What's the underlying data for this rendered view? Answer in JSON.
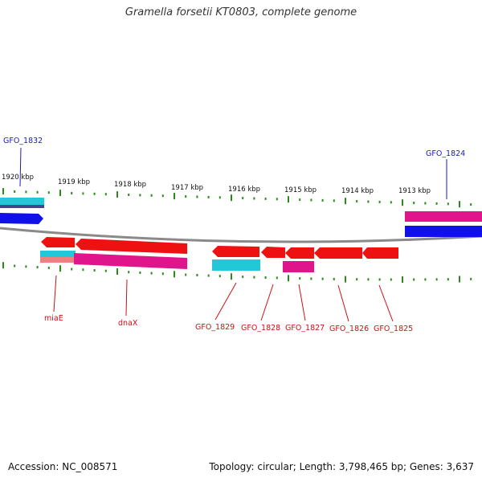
{
  "title": "Gramella forsetii KT0803, complete genome",
  "footer": {
    "accession": "Accession: NC_008571",
    "topology": "Topology: circular; Length: 3,798,465 bp; Genes: 3,637"
  },
  "scale": {
    "kbp_labels": [
      "1920 kbp",
      "1919 kbp",
      "1918 kbp",
      "1917 kbp",
      "1916 kbp",
      "1915 kbp",
      "1914 kbp",
      "1913 kbp"
    ]
  },
  "gene_labels": {
    "top": [
      "GFO_1832",
      "GFO_1824"
    ],
    "bottom": [
      "miaE",
      "dnaX",
      "GFO_1829",
      "GFO_1828",
      "GFO_1827",
      "GFO_1826",
      "GFO_1825"
    ]
  },
  "colors": {
    "backbone": "#888888",
    "cds": "#ee1111",
    "gene_cyan": "#22c8d8",
    "gene_magenta": "#e0158c",
    "gene_blue": "#1010e8",
    "tick": "#2a8a1a",
    "label_top": "#1a1acc",
    "label_bottom": "#cc1111"
  }
}
